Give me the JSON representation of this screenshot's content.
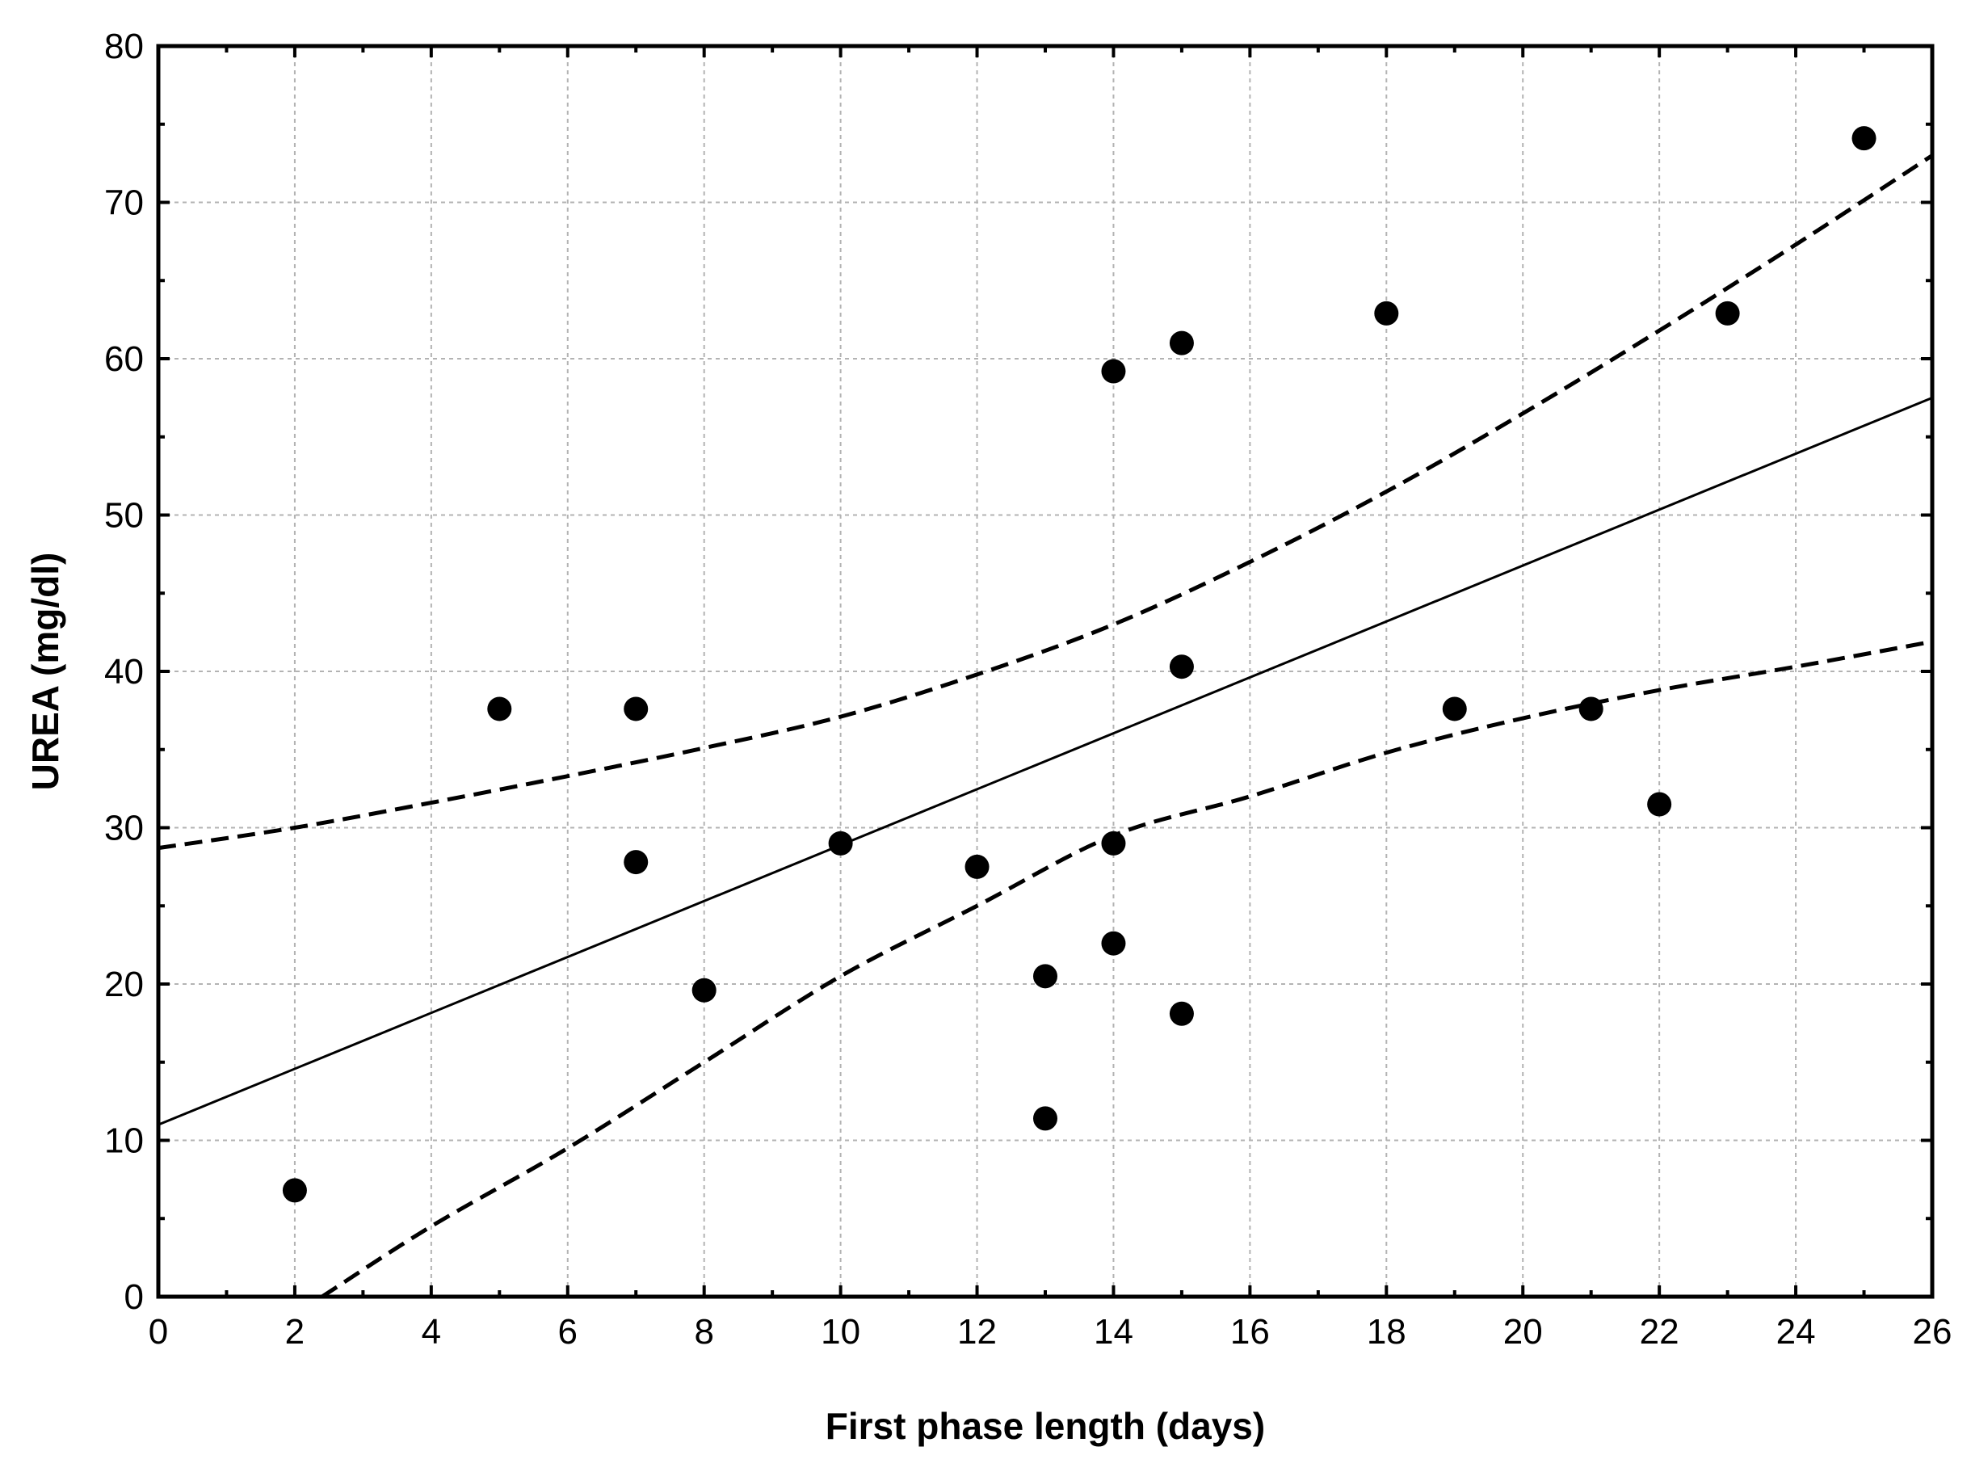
{
  "chart_data": {
    "type": "scatter",
    "title": "",
    "xlabel": "First phase length (days)",
    "ylabel": "UREA (mg/dl)",
    "xlim": [
      0,
      26
    ],
    "ylim": [
      0,
      80
    ],
    "x_ticks": [
      0,
      2,
      4,
      6,
      8,
      10,
      12,
      14,
      16,
      18,
      20,
      22,
      24,
      26
    ],
    "y_ticks": [
      0,
      10,
      20,
      30,
      40,
      50,
      60,
      70,
      80
    ],
    "grid": true,
    "points": [
      {
        "x": 2,
        "y": 6.8
      },
      {
        "x": 5,
        "y": 37.6
      },
      {
        "x": 7,
        "y": 37.6
      },
      {
        "x": 7,
        "y": 27.8
      },
      {
        "x": 8,
        "y": 19.6
      },
      {
        "x": 10,
        "y": 29.0
      },
      {
        "x": 12,
        "y": 27.5
      },
      {
        "x": 13,
        "y": 20.5
      },
      {
        "x": 13,
        "y": 11.4
      },
      {
        "x": 14,
        "y": 59.2
      },
      {
        "x": 14,
        "y": 29.0
      },
      {
        "x": 14,
        "y": 22.6
      },
      {
        "x": 15,
        "y": 61.0
      },
      {
        "x": 15,
        "y": 40.3
      },
      {
        "x": 15,
        "y": 18.1
      },
      {
        "x": 18,
        "y": 62.9
      },
      {
        "x": 19,
        "y": 37.6
      },
      {
        "x": 21,
        "y": 37.6
      },
      {
        "x": 22,
        "y": 31.5
      },
      {
        "x": 23,
        "y": 62.9
      },
      {
        "x": 25,
        "y": 74.1
      }
    ],
    "regression": {
      "x": [
        0,
        26
      ],
      "y": [
        11.0,
        57.5
      ]
    },
    "confidence_upper": {
      "x": [
        0,
        2,
        4,
        6,
        8,
        10,
        12,
        14,
        16,
        18,
        20,
        22,
        24,
        26
      ],
      "y": [
        28.7,
        30.0,
        31.6,
        33.3,
        35.1,
        37.1,
        39.8,
        43.0,
        47.0,
        51.5,
        56.5,
        61.8,
        67.3,
        73.0
      ]
    },
    "confidence_lower": {
      "x": [
        2.4,
        4,
        6,
        8,
        10,
        12,
        14,
        16,
        18,
        20,
        22,
        24,
        26
      ],
      "y": [
        0,
        4.5,
        9.5,
        15.0,
        20.5,
        25.0,
        29.5,
        32.0,
        34.8,
        37.0,
        38.8,
        40.3,
        41.9
      ]
    }
  }
}
